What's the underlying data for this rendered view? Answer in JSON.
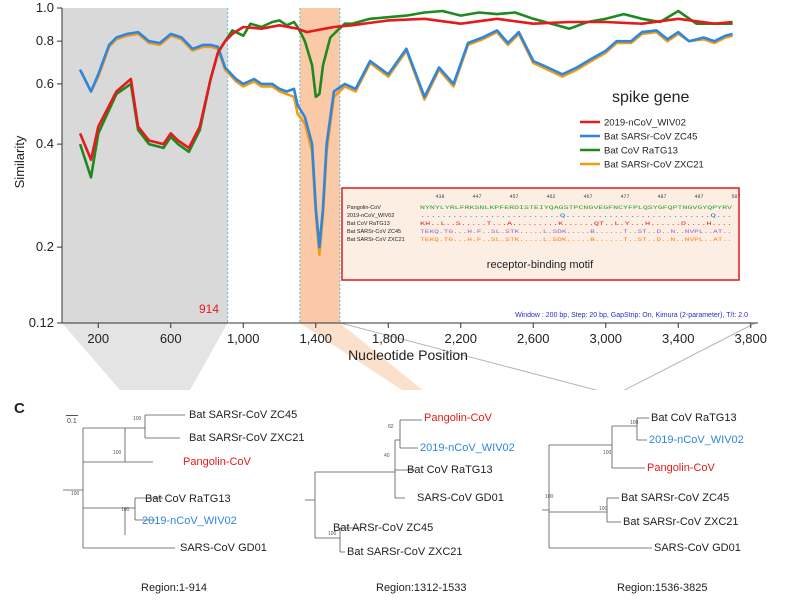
{
  "chart_data": {
    "type": "line",
    "title": "spike gene",
    "xlabel": "Nucleotide Position",
    "ylabel": "Similarity",
    "xlim": [
      0,
      3840
    ],
    "ylim": [
      0.12,
      1.0
    ],
    "y_scale": "log",
    "xticks": [
      "200",
      "600",
      "1,000",
      "1,400",
      "1,800",
      "2,200",
      "2,600",
      "3,000",
      "3,400",
      "3,800"
    ],
    "yticks": [
      "0.12",
      "0.2",
      "0.4",
      "0.6",
      "0.8",
      "1.0"
    ],
    "annotation": "914",
    "settings_note": "Window : 200 bp, Step: 20 bp, GapStrip: On, Kimura (2-parameter), T/t: 2.0",
    "legend": "right",
    "series": [
      {
        "name": "2019-nCoV_WIV02",
        "color": "#e41a1c",
        "x": [
          100,
          160,
          200,
          300,
          380,
          420,
          480,
          560,
          600,
          640,
          700,
          760,
          820,
          860,
          900,
          940,
          1000,
          1100,
          1200,
          1300,
          1350,
          1400,
          1450,
          1500,
          1600,
          1800,
          2000,
          2200,
          2400,
          2600,
          2800,
          3000,
          3200,
          3400,
          3600,
          3700
        ],
        "y": [
          0.43,
          0.36,
          0.45,
          0.57,
          0.62,
          0.45,
          0.41,
          0.4,
          0.43,
          0.41,
          0.39,
          0.45,
          0.62,
          0.74,
          0.8,
          0.84,
          0.88,
          0.87,
          0.89,
          0.87,
          0.85,
          0.86,
          0.87,
          0.88,
          0.89,
          0.92,
          0.93,
          0.9,
          0.93,
          0.9,
          0.91,
          0.91,
          0.9,
          0.93,
          0.9,
          0.91
        ]
      },
      {
        "name": "Bat SARSr-CoV ZC45",
        "color": "#2e86de",
        "x": [
          100,
          160,
          200,
          260,
          300,
          360,
          420,
          480,
          540,
          600,
          660,
          720,
          780,
          820,
          860,
          900,
          960,
          1000,
          1060,
          1100,
          1160,
          1200,
          1240,
          1280,
          1300,
          1340,
          1380,
          1400,
          1420,
          1440,
          1460,
          1500,
          1560,
          1620,
          1700,
          1800,
          1900,
          2000,
          2080,
          2160,
          2240,
          2320,
          2400,
          2460,
          2520,
          2600,
          2680,
          2760,
          2840,
          2920,
          3000,
          3060,
          3140,
          3200,
          3280,
          3340,
          3400,
          3460,
          3540,
          3600,
          3660,
          3700
        ],
        "y": [
          0.66,
          0.57,
          0.64,
          0.78,
          0.82,
          0.84,
          0.85,
          0.8,
          0.79,
          0.84,
          0.82,
          0.76,
          0.78,
          0.78,
          0.77,
          0.67,
          0.62,
          0.6,
          0.62,
          0.6,
          0.6,
          0.58,
          0.57,
          0.58,
          0.52,
          0.48,
          0.4,
          0.26,
          0.2,
          0.26,
          0.4,
          0.57,
          0.6,
          0.58,
          0.7,
          0.64,
          0.76,
          0.55,
          0.67,
          0.6,
          0.79,
          0.82,
          0.86,
          0.79,
          0.85,
          0.7,
          0.67,
          0.64,
          0.67,
          0.71,
          0.75,
          0.8,
          0.8,
          0.85,
          0.86,
          0.81,
          0.85,
          0.8,
          0.82,
          0.8,
          0.83,
          0.84
        ]
      },
      {
        "name": "Bat CoV RaTG13",
        "color": "#1e8a1e",
        "x": [
          100,
          160,
          200,
          300,
          380,
          420,
          480,
          560,
          600,
          640,
          700,
          760,
          820,
          860,
          900,
          940,
          1000,
          1040,
          1100,
          1160,
          1200,
          1240,
          1280,
          1300,
          1320,
          1340,
          1380,
          1400,
          1420,
          1440,
          1480,
          1520,
          1560,
          1600,
          1700,
          1800,
          1900,
          2000,
          2100,
          2200,
          2300,
          2400,
          2500,
          2600,
          2700,
          2800,
          2900,
          3000,
          3100,
          3200,
          3300,
          3400,
          3500,
          3600,
          3700
        ],
        "y": [
          0.4,
          0.32,
          0.43,
          0.56,
          0.6,
          0.44,
          0.4,
          0.39,
          0.42,
          0.4,
          0.38,
          0.44,
          0.62,
          0.74,
          0.8,
          0.86,
          0.83,
          0.9,
          0.88,
          0.91,
          0.92,
          0.89,
          0.91,
          0.88,
          0.84,
          0.8,
          0.68,
          0.55,
          0.56,
          0.68,
          0.82,
          0.86,
          0.9,
          0.9,
          0.93,
          0.94,
          0.95,
          0.97,
          0.98,
          0.95,
          0.97,
          0.96,
          0.97,
          0.93,
          0.9,
          0.87,
          0.91,
          0.93,
          0.96,
          0.93,
          0.91,
          0.98,
          0.9,
          0.9,
          0.9
        ]
      },
      {
        "name": "Bat SARSr-CoV ZXC21",
        "color": "#f39c12",
        "x": [
          100,
          160,
          200,
          260,
          300,
          360,
          420,
          480,
          540,
          600,
          660,
          720,
          780,
          820,
          860,
          900,
          960,
          1000,
          1060,
          1100,
          1160,
          1200,
          1240,
          1280,
          1300,
          1340,
          1380,
          1400,
          1420,
          1440,
          1460,
          1500,
          1560,
          1620,
          1700,
          1800,
          1900,
          2000,
          2080,
          2160,
          2240,
          2320,
          2400,
          2460,
          2520,
          2600,
          2680,
          2760,
          2840,
          2920,
          3000,
          3060,
          3140,
          3200,
          3280,
          3340,
          3400,
          3460,
          3540,
          3600,
          3660,
          3700
        ],
        "y": [
          0.66,
          0.57,
          0.63,
          0.77,
          0.81,
          0.83,
          0.84,
          0.79,
          0.78,
          0.83,
          0.81,
          0.75,
          0.77,
          0.77,
          0.76,
          0.66,
          0.61,
          0.59,
          0.61,
          0.59,
          0.59,
          0.57,
          0.56,
          0.55,
          0.49,
          0.46,
          0.38,
          0.25,
          0.19,
          0.25,
          0.38,
          0.55,
          0.59,
          0.57,
          0.69,
          0.63,
          0.75,
          0.54,
          0.66,
          0.59,
          0.78,
          0.81,
          0.85,
          0.78,
          0.84,
          0.69,
          0.66,
          0.63,
          0.66,
          0.7,
          0.74,
          0.79,
          0.79,
          0.84,
          0.85,
          0.8,
          0.84,
          0.8,
          0.81,
          0.79,
          0.82,
          0.83
        ]
      }
    ]
  },
  "inset": {
    "caption": "receptor-binding motif",
    "positions": [
      "438",
      "447",
      "457",
      "462",
      "467",
      "477",
      "487",
      "497",
      "507"
    ],
    "rows": [
      {
        "name": "Pangolin-CoV",
        "seq": "NYNYLYRLFRKSNLKPFERDISTEIYQAGSTPCNGVEGFNCYFPLQSYGFQPTNGVGYQPYRV"
      },
      {
        "name": "2019-nCoV_WIV02",
        "seq": "..........................Q...........................Q..."
      },
      {
        "name": "Bat CoV RaTG13",
        "seq": "KH..L..S.....T...A.........K......QT..L.Y...H......D....H...."
      },
      {
        "name": "Bat SARSr-CoV ZC45",
        "seq": "TEKQ.TG...H.F..SL.STK.....L.SDK.....B......T..ST..D..N..NVPL..AT.."
      },
      {
        "name": "Bat SARSr-CoV ZXC21",
        "seq": "TEKQ.TG...H.F..SL.STK.....L.SDK.....B......T..ST..D..N..NVPL..AT.."
      }
    ]
  },
  "panel_label": "C",
  "scale_label": "0.1",
  "trees": [
    {
      "region": "Region:1-914",
      "leaves": [
        "Bat SARSr-CoV ZC45",
        "Bat SARSr-CoV ZXC21",
        "Pangolin-CoV",
        "Bat CoV RaTG13",
        "2019-nCoV_WIV02",
        "SARS-CoV GD01"
      ],
      "bootstrap": [
        "100",
        "100",
        "100",
        "100"
      ]
    },
    {
      "region": "Region:1312-1533",
      "leaves": [
        "Pangolin-CoV",
        "2019-nCoV_WIV02",
        "Bat CoV RaTG13",
        "SARS-CoV GD01",
        "Bat ARSr-CoV ZC45",
        "Bat SARSr-CoV ZXC21"
      ],
      "bootstrap": [
        "82",
        "40",
        "100"
      ]
    },
    {
      "region": "Region:1536-3825",
      "leaves": [
        "Bat CoV RaTG13",
        "2019-nCoV_WIV02",
        "Pangolin-CoV",
        "Bat SARSr-CoV ZC45",
        "Bat SARSr-CoV ZXC21",
        "SARS-CoV GD01"
      ],
      "bootstrap": [
        "100",
        "100",
        "100",
        "100"
      ]
    }
  ],
  "colors": {
    "highlight_red": "#e41a1c",
    "highlight_blue": "#2e86de",
    "region1_shade": "#d9d9d9",
    "region2_shade": "#f9c9a8"
  }
}
